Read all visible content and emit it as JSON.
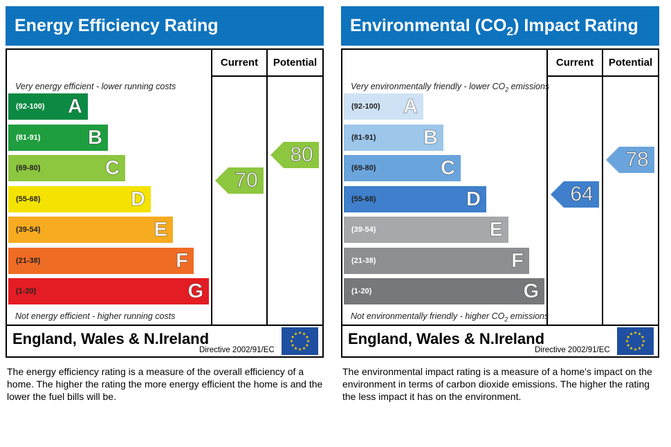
{
  "chart_data": [
    {
      "type": "bar",
      "title": "Energy Efficiency Rating",
      "columns": [
        "Current",
        "Potential"
      ],
      "caption_top": "Very energy efficient - lower running costs",
      "caption_bottom": "Not energy efficient - higher running costs",
      "bands": [
        {
          "letter": "A",
          "range": "(92-100)",
          "color": "#0c8a43",
          "min": 92,
          "max": 100
        },
        {
          "letter": "B",
          "range": "(81-91)",
          "color": "#1f9e3f",
          "min": 81,
          "max": 91
        },
        {
          "letter": "C",
          "range": "(69-80)",
          "color": "#8dc63f",
          "min": 69,
          "max": 80
        },
        {
          "letter": "D",
          "range": "(55-68)",
          "color": "#f4e300",
          "min": 55,
          "max": 68
        },
        {
          "letter": "E",
          "range": "(39-54)",
          "color": "#f7ab21",
          "min": 39,
          "max": 54
        },
        {
          "letter": "F",
          "range": "(21-38)",
          "color": "#ef6c25",
          "min": 21,
          "max": 38
        },
        {
          "letter": "G",
          "range": "(1-20)",
          "color": "#e31d23",
          "min": 1,
          "max": 20
        }
      ],
      "current": {
        "value": 70,
        "label": "70",
        "color": "#8dc63f"
      },
      "potential": {
        "value": 80,
        "label": "80",
        "color": "#8dc63f"
      },
      "footer_region": "England, Wales & N.Ireland",
      "footer_directive": "Directive 2002/91/EC",
      "description": "The energy efficiency rating is a measure of the overall efficiency of a home. The higher the rating the more energy efficient the home is and the lower the fuel bills will be."
    },
    {
      "type": "bar",
      "title": "Environmental (CO2) Impact Rating",
      "columns": [
        "Current",
        "Potential"
      ],
      "caption_top": "Very environmentally friendly - lower CO2 emissions",
      "caption_bottom": "Not environmentally friendly - higher CO2 emissions",
      "bands": [
        {
          "letter": "A",
          "range": "(92-100)",
          "color": "#cfe2f5",
          "min": 92,
          "max": 100
        },
        {
          "letter": "B",
          "range": "(81-91)",
          "color": "#9cc6ea",
          "min": 81,
          "max": 91
        },
        {
          "letter": "C",
          "range": "(69-80)",
          "color": "#6aa4dc",
          "min": 69,
          "max": 80
        },
        {
          "letter": "D",
          "range": "(55-68)",
          "color": "#3f7fcb",
          "min": 55,
          "max": 68
        },
        {
          "letter": "E",
          "range": "(39-54)",
          "color": "#a6a8ab",
          "min": 39,
          "max": 54
        },
        {
          "letter": "F",
          "range": "(21-38)",
          "color": "#8d8f92",
          "min": 21,
          "max": 38
        },
        {
          "letter": "G",
          "range": "(1-20)",
          "color": "#76787b",
          "min": 1,
          "max": 20
        }
      ],
      "current": {
        "value": 64,
        "label": "64",
        "color": "#3f7fcb"
      },
      "potential": {
        "value": 78,
        "label": "78",
        "color": "#6aa4dc"
      },
      "footer_region": "England, Wales & N.Ireland",
      "footer_directive": "Directive 2002/91/EC",
      "description": "The environmental impact rating is a measure of a home's impact on the environment in terms of carbon dioxide emissions. The higher the rating the less impact it has on the environment."
    }
  ]
}
